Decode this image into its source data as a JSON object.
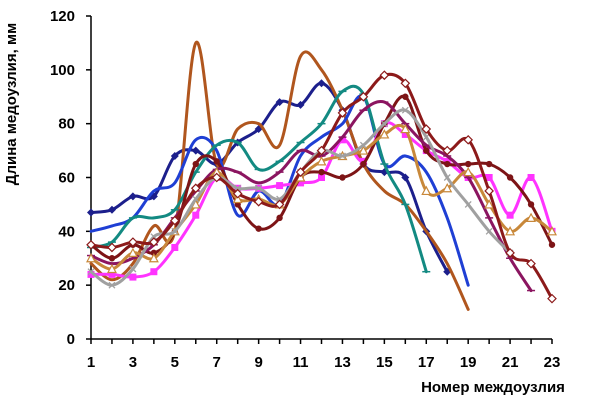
{
  "chart_data": {
    "type": "line",
    "title": "",
    "xlabel": "Номер междоузлия",
    "ylabel": "Длина медоузлия, мм",
    "xlim": [
      1,
      23
    ],
    "ylim": [
      0,
      120
    ],
    "x_ticks": [
      "1",
      "3",
      "5",
      "7",
      "9",
      "11",
      "13",
      "15",
      "17",
      "19",
      "21",
      "23"
    ],
    "y_ticks": [
      "0",
      "20",
      "40",
      "60",
      "80",
      "100",
      "120"
    ],
    "grid": false,
    "legend": "none",
    "series": [
      {
        "color": "#1c1f8c",
        "marker": "diamond",
        "points": [
          [
            1,
            47
          ],
          [
            2,
            48
          ],
          [
            3,
            53
          ],
          [
            4,
            53
          ],
          [
            5,
            68
          ],
          [
            6,
            70
          ],
          [
            7,
            65
          ],
          [
            8,
            73
          ],
          [
            9,
            78
          ],
          [
            10,
            88
          ],
          [
            11,
            87
          ],
          [
            12,
            95
          ],
          [
            13,
            85
          ],
          [
            14,
            65
          ],
          [
            15,
            62
          ],
          [
            16,
            60
          ],
          [
            17,
            40
          ],
          [
            18,
            25
          ]
        ]
      },
      {
        "color": "#b0561e",
        "marker": "none",
        "points": [
          [
            1,
            28
          ],
          [
            2,
            22
          ],
          [
            3,
            28
          ],
          [
            4,
            42
          ],
          [
            5,
            40
          ],
          [
            6,
            110
          ],
          [
            7,
            65
          ],
          [
            8,
            78
          ],
          [
            9,
            80
          ],
          [
            10,
            72
          ],
          [
            11,
            105
          ],
          [
            12,
            100
          ],
          [
            13,
            85
          ],
          [
            14,
            65
          ],
          [
            15,
            55
          ],
          [
            16,
            50
          ],
          [
            17,
            40
          ],
          [
            18,
            28
          ],
          [
            19,
            11
          ]
        ]
      },
      {
        "color": "#1f3fd4",
        "marker": "none",
        "points": [
          [
            1,
            40
          ],
          [
            2,
            42
          ],
          [
            3,
            45
          ],
          [
            4,
            55
          ],
          [
            5,
            58
          ],
          [
            6,
            74
          ],
          [
            7,
            70
          ],
          [
            8,
            46
          ],
          [
            9,
            55
          ],
          [
            10,
            50
          ],
          [
            11,
            68
          ],
          [
            12,
            75
          ],
          [
            13,
            80
          ],
          [
            14,
            90
          ],
          [
            15,
            65
          ],
          [
            16,
            68
          ],
          [
            17,
            62
          ],
          [
            18,
            45
          ],
          [
            19,
            20
          ]
        ]
      },
      {
        "color": "#138a82",
        "marker": "dash",
        "points": [
          [
            1,
            34
          ],
          [
            2,
            36
          ],
          [
            3,
            45
          ],
          [
            4,
            45
          ],
          [
            5,
            48
          ],
          [
            6,
            62
          ],
          [
            7,
            72
          ],
          [
            8,
            73
          ],
          [
            9,
            63
          ],
          [
            10,
            66
          ],
          [
            11,
            73
          ],
          [
            12,
            80
          ],
          [
            13,
            92
          ],
          [
            14,
            91
          ],
          [
            15,
            65
          ],
          [
            16,
            50
          ],
          [
            17,
            25
          ]
        ]
      },
      {
        "color": "#ff33ff",
        "marker": "square",
        "points": [
          [
            1,
            24
          ],
          [
            2,
            24
          ],
          [
            3,
            23
          ],
          [
            4,
            25
          ],
          [
            5,
            34
          ],
          [
            6,
            46
          ],
          [
            7,
            60
          ],
          [
            8,
            56
          ],
          [
            9,
            56
          ],
          [
            10,
            57
          ],
          [
            11,
            58
          ],
          [
            12,
            60
          ],
          [
            13,
            74
          ],
          [
            14,
            66
          ],
          [
            15,
            80
          ],
          [
            16,
            76
          ],
          [
            17,
            70
          ],
          [
            18,
            66
          ],
          [
            19,
            60
          ],
          [
            20,
            60
          ],
          [
            21,
            46
          ],
          [
            22,
            60
          ],
          [
            23,
            40
          ]
        ]
      },
      {
        "color": "#7d1416",
        "marker": "circle",
        "points": [
          [
            1,
            35
          ],
          [
            2,
            30
          ],
          [
            3,
            35
          ],
          [
            4,
            32
          ],
          [
            5,
            40
          ],
          [
            6,
            65
          ],
          [
            7,
            66
          ],
          [
            8,
            50
          ],
          [
            9,
            41
          ],
          [
            10,
            45
          ],
          [
            11,
            60
          ],
          [
            12,
            62
          ],
          [
            13,
            60
          ],
          [
            14,
            65
          ],
          [
            15,
            80
          ],
          [
            16,
            90
          ],
          [
            17,
            70
          ],
          [
            18,
            65
          ],
          [
            19,
            65
          ],
          [
            20,
            65
          ],
          [
            21,
            60
          ],
          [
            22,
            50
          ],
          [
            23,
            35
          ]
        ]
      },
      {
        "color": "#8b1560",
        "marker": "dash",
        "points": [
          [
            1,
            31
          ],
          [
            2,
            28
          ],
          [
            3,
            30
          ],
          [
            4,
            35
          ],
          [
            5,
            45
          ],
          [
            6,
            55
          ],
          [
            7,
            63
          ],
          [
            8,
            62
          ],
          [
            9,
            58
          ],
          [
            10,
            62
          ],
          [
            11,
            70
          ],
          [
            12,
            68
          ],
          [
            13,
            75
          ],
          [
            14,
            85
          ],
          [
            15,
            88
          ],
          [
            16,
            80
          ],
          [
            17,
            72
          ],
          [
            18,
            68
          ],
          [
            19,
            60
          ],
          [
            20,
            45
          ],
          [
            21,
            30
          ],
          [
            22,
            18
          ]
        ]
      },
      {
        "color": "#c8883a",
        "marker": "triangle",
        "points": [
          [
            1,
            30
          ],
          [
            2,
            26
          ],
          [
            3,
            32
          ],
          [
            4,
            30
          ],
          [
            5,
            40
          ],
          [
            6,
            50
          ],
          [
            7,
            62
          ],
          [
            8,
            52
          ],
          [
            9,
            52
          ],
          [
            10,
            50
          ],
          [
            11,
            60
          ],
          [
            12,
            66
          ],
          [
            13,
            68
          ],
          [
            14,
            70
          ],
          [
            15,
            76
          ],
          [
            16,
            78
          ],
          [
            17,
            55
          ],
          [
            18,
            56
          ],
          [
            19,
            62
          ],
          [
            20,
            50
          ],
          [
            21,
            40
          ],
          [
            22,
            45
          ],
          [
            23,
            40
          ]
        ]
      },
      {
        "color": "#a0a0a0",
        "marker": "x",
        "points": [
          [
            1,
            25
          ],
          [
            2,
            20
          ],
          [
            3,
            26
          ],
          [
            4,
            38
          ],
          [
            5,
            40
          ],
          [
            6,
            52
          ],
          [
            7,
            60
          ],
          [
            8,
            56
          ],
          [
            9,
            56
          ],
          [
            10,
            52
          ],
          [
            11,
            62
          ],
          [
            12,
            70
          ],
          [
            13,
            68
          ],
          [
            14,
            72
          ],
          [
            15,
            80
          ],
          [
            16,
            85
          ],
          [
            17,
            75
          ],
          [
            18,
            60
          ],
          [
            19,
            50
          ],
          [
            20,
            40
          ],
          [
            21,
            32
          ]
        ]
      },
      {
        "color": "#8c1a1a",
        "marker": "open-diamond",
        "points": [
          [
            1,
            35
          ],
          [
            2,
            34
          ],
          [
            3,
            36
          ],
          [
            4,
            36
          ],
          [
            5,
            44
          ],
          [
            6,
            56
          ],
          [
            7,
            60
          ],
          [
            8,
            54
          ],
          [
            9,
            51
          ],
          [
            10,
            50
          ],
          [
            11,
            62
          ],
          [
            12,
            70
          ],
          [
            13,
            84
          ],
          [
            14,
            90
          ],
          [
            15,
            98
          ],
          [
            16,
            95
          ],
          [
            17,
            78
          ],
          [
            18,
            70
          ],
          [
            19,
            74
          ],
          [
            20,
            55
          ],
          [
            21,
            32
          ],
          [
            22,
            28
          ],
          [
            23,
            15
          ]
        ]
      }
    ]
  }
}
